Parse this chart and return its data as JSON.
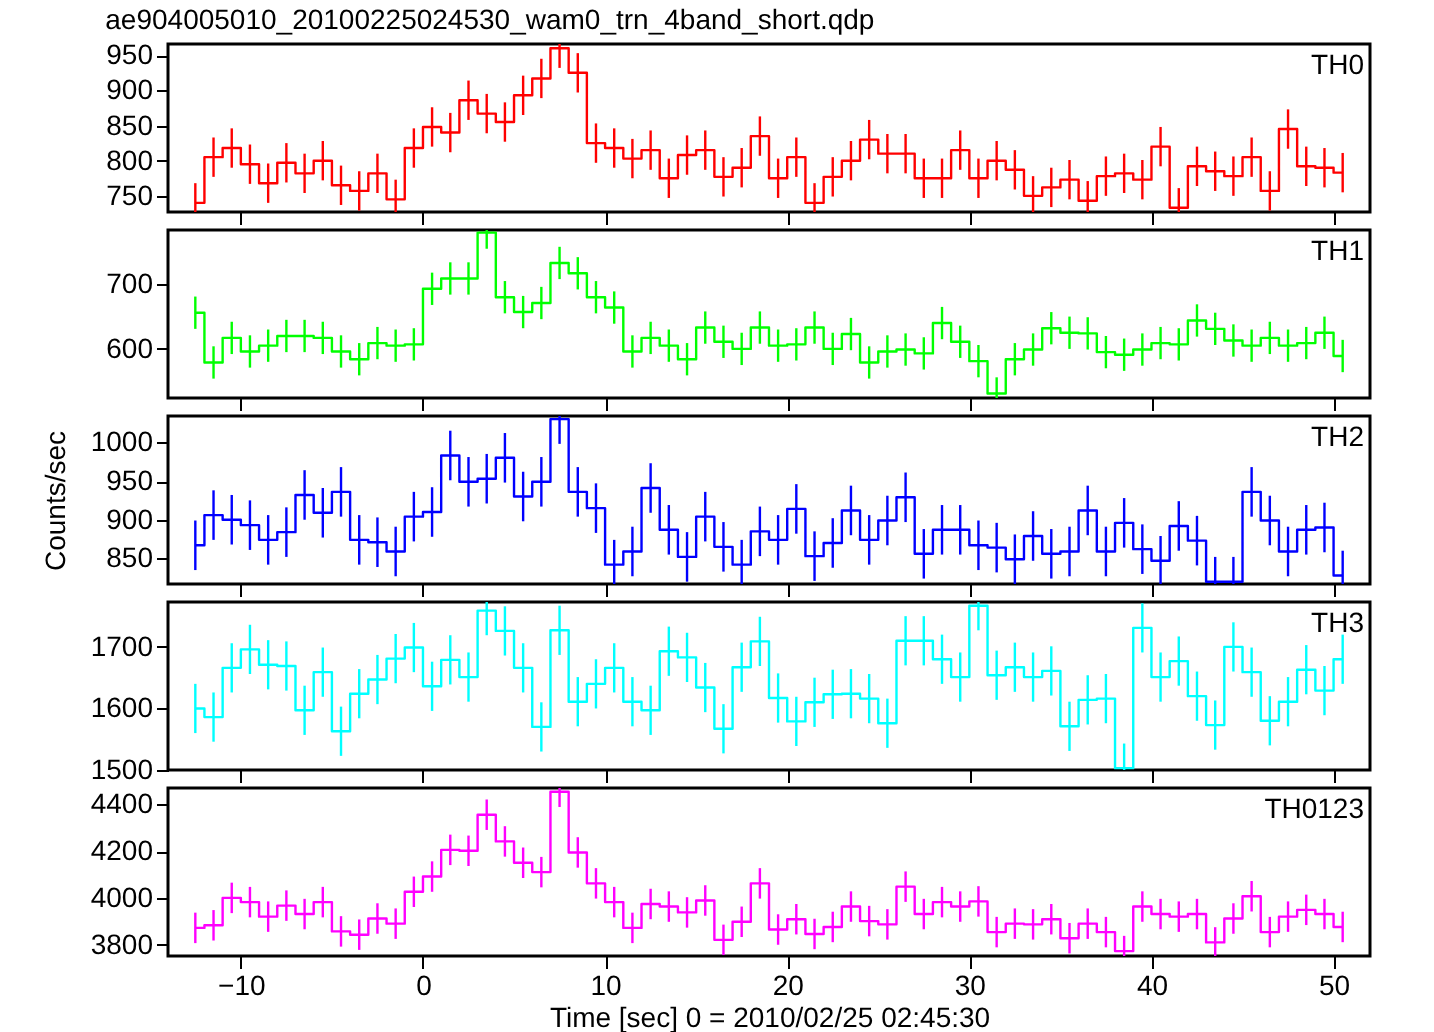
{
  "chart_data": [
    {
      "type": "step",
      "title": "ae904005010_20100225024530_wam0_trn_4band_short.qdp",
      "tick_labels": "y",
      "x": [
        -12.5,
        -11.5,
        -10.5,
        -9.5,
        -8.5,
        -7.5,
        -6.5,
        -5.5,
        -4.5,
        -3.5,
        -2.5,
        -1.5,
        -0.5,
        0.5,
        1.5,
        2.5,
        3.5,
        4.5,
        5.5,
        6.5,
        7.5,
        8.5,
        9.5,
        10.5,
        11.5,
        12.5,
        13.5,
        14.5,
        15.5,
        16.5,
        17.5,
        18.5,
        19.5,
        20.5,
        21.5,
        22.5,
        23.5,
        24.5,
        25.5,
        26.5,
        27.5,
        28.5,
        29.5,
        30.5,
        31.5,
        32.5,
        33.5,
        34.5,
        35.5,
        36.5,
        37.5,
        38.5,
        39.5,
        40.5,
        41.5,
        42.5,
        43.5,
        44.5,
        45.5,
        46.5,
        47.5,
        48.5,
        49.5,
        50.5
      ],
      "xlim": [
        -14,
        52
      ],
      "xticks": [
        -10,
        0,
        10,
        20,
        30,
        40,
        50
      ],
      "ylim": [
        727,
        966
      ],
      "yticks": [
        750,
        800,
        850,
        900,
        950
      ],
      "series": [
        {
          "name": "TH0",
          "color": "#ff0000",
          "values": [
            740,
            805,
            818,
            795,
            768,
            797,
            782,
            800,
            765,
            757,
            782,
            745,
            818,
            848,
            840,
            886,
            867,
            855,
            893,
            917,
            960,
            925,
            825,
            818,
            803,
            815,
            775,
            808,
            815,
            777,
            790,
            835,
            775,
            805,
            740,
            777,
            800,
            830,
            810,
            810,
            775,
            775,
            815,
            775,
            800,
            787,
            750,
            762,
            773,
            743,
            778,
            782,
            773,
            820,
            733,
            792,
            785,
            778,
            805,
            757,
            845,
            792,
            790,
            783
          ],
          "errors": [
            28,
            28,
            28,
            28,
            28,
            28,
            28,
            28,
            28,
            28,
            28,
            28,
            28,
            28,
            28,
            28,
            28,
            28,
            28,
            28,
            28,
            28,
            28,
            28,
            28,
            28,
            28,
            28,
            28,
            28,
            28,
            28,
            28,
            28,
            28,
            28,
            28,
            28,
            28,
            28,
            28,
            28,
            28,
            28,
            28,
            28,
            28,
            28,
            28,
            28,
            28,
            28,
            28,
            28,
            28,
            28,
            28,
            28,
            28,
            28,
            28,
            28,
            28,
            28
          ]
        }
      ]
    },
    {
      "type": "step",
      "tick_labels": "y",
      "x": [
        -12.5,
        -11.5,
        -10.5,
        -9.5,
        -8.5,
        -7.5,
        -6.5,
        -5.5,
        -4.5,
        -3.5,
        -2.5,
        -1.5,
        -0.5,
        0.5,
        1.5,
        2.5,
        3.5,
        4.5,
        5.5,
        6.5,
        7.5,
        8.5,
        9.5,
        10.5,
        11.5,
        12.5,
        13.5,
        14.5,
        15.5,
        16.5,
        17.5,
        18.5,
        19.5,
        20.5,
        21.5,
        22.5,
        23.5,
        24.5,
        25.5,
        26.5,
        27.5,
        28.5,
        29.5,
        30.5,
        31.5,
        32.5,
        33.5,
        34.5,
        35.5,
        36.5,
        37.5,
        38.5,
        39.5,
        40.5,
        41.5,
        42.5,
        43.5,
        44.5,
        45.5,
        46.5,
        47.5,
        48.5,
        49.5,
        50.5
      ],
      "xlim": [
        -14,
        52
      ],
      "xticks": [
        -10,
        0,
        10,
        20,
        30,
        40,
        50
      ],
      "ylim": [
        524,
        784
      ],
      "yticks": [
        600,
        700
      ],
      "series": [
        {
          "name": "TH1",
          "color": "#00ff00",
          "values": [
            656,
            579,
            617,
            596,
            605,
            620,
            620,
            617,
            596,
            584,
            609,
            605,
            607,
            693,
            709,
            709,
            780,
            680,
            657,
            671,
            733,
            717,
            680,
            664,
            596,
            617,
            605,
            584,
            633,
            611,
            600,
            633,
            605,
            607,
            633,
            600,
            623,
            579,
            596,
            599,
            593,
            640,
            611,
            581,
            531,
            584,
            599,
            632,
            625,
            624,
            595,
            591,
            599,
            609,
            607,
            644,
            631,
            613,
            605,
            617,
            605,
            609,
            625,
            589
          ],
          "errors": [
            25,
            25,
            25,
            25,
            25,
            25,
            25,
            25,
            25,
            25,
            25,
            25,
            25,
            25,
            25,
            25,
            25,
            25,
            25,
            25,
            25,
            25,
            25,
            25,
            25,
            25,
            25,
            25,
            25,
            25,
            25,
            25,
            25,
            25,
            25,
            25,
            25,
            25,
            25,
            25,
            25,
            25,
            25,
            25,
            25,
            25,
            25,
            25,
            25,
            25,
            25,
            25,
            25,
            25,
            25,
            25,
            25,
            25,
            25,
            25,
            25,
            25,
            25,
            25
          ]
        }
      ]
    },
    {
      "type": "step",
      "tick_labels": "y",
      "ylabel": "Counts/sec",
      "x": [
        -12.5,
        -11.5,
        -10.5,
        -9.5,
        -8.5,
        -7.5,
        -6.5,
        -5.5,
        -4.5,
        -3.5,
        -2.5,
        -1.5,
        -0.5,
        0.5,
        1.5,
        2.5,
        3.5,
        4.5,
        5.5,
        6.5,
        7.5,
        8.5,
        9.5,
        10.5,
        11.5,
        12.5,
        13.5,
        14.5,
        15.5,
        16.5,
        17.5,
        18.5,
        19.5,
        20.5,
        21.5,
        22.5,
        23.5,
        24.5,
        25.5,
        26.5,
        27.5,
        28.5,
        29.5,
        30.5,
        31.5,
        32.5,
        33.5,
        34.5,
        35.5,
        36.5,
        37.5,
        38.5,
        39.5,
        40.5,
        41.5,
        42.5,
        43.5,
        44.5,
        45.5,
        46.5,
        47.5,
        48.5,
        49.5,
        50.5
      ],
      "xlim": [
        -14,
        52
      ],
      "xticks": [
        -10,
        0,
        10,
        20,
        30,
        40,
        50
      ],
      "ylim": [
        817,
        1034
      ],
      "yticks": [
        850,
        900,
        950,
        1000
      ],
      "series": [
        {
          "name": "TH2",
          "color": "#0000ff",
          "values": [
            867,
            906,
            900,
            893,
            874,
            884,
            932,
            909,
            936,
            874,
            871,
            859,
            904,
            910,
            983,
            949,
            953,
            980,
            930,
            949,
            1030,
            936,
            915,
            842,
            859,
            941,
            887,
            852,
            904,
            865,
            842,
            885,
            874,
            914,
            853,
            870,
            912,
            874,
            899,
            929,
            856,
            887,
            887,
            867,
            864,
            849,
            879,
            856,
            859,
            912,
            859,
            896,
            862,
            847,
            892,
            873,
            820,
            820,
            936,
            899,
            859,
            887,
            890,
            828
          ],
          "errors": [
            32,
            32,
            32,
            32,
            32,
            32,
            32,
            32,
            32,
            32,
            32,
            32,
            32,
            32,
            32,
            32,
            32,
            32,
            32,
            32,
            32,
            32,
            32,
            32,
            32,
            32,
            32,
            32,
            32,
            32,
            32,
            32,
            32,
            32,
            32,
            32,
            32,
            32,
            32,
            32,
            32,
            32,
            32,
            32,
            32,
            32,
            32,
            32,
            32,
            32,
            32,
            32,
            32,
            32,
            32,
            32,
            32,
            32,
            32,
            32,
            32,
            32,
            32,
            32
          ]
        }
      ]
    },
    {
      "type": "step",
      "tick_labels": "y",
      "x": [
        -12.5,
        -11.5,
        -10.5,
        -9.5,
        -8.5,
        -7.5,
        -6.5,
        -5.5,
        -4.5,
        -3.5,
        -2.5,
        -1.5,
        -0.5,
        0.5,
        1.5,
        2.5,
        3.5,
        4.5,
        5.5,
        6.5,
        7.5,
        8.5,
        9.5,
        10.5,
        11.5,
        12.5,
        13.5,
        14.5,
        15.5,
        16.5,
        17.5,
        18.5,
        19.5,
        20.5,
        21.5,
        22.5,
        23.5,
        24.5,
        25.5,
        26.5,
        27.5,
        28.5,
        29.5,
        30.5,
        31.5,
        32.5,
        33.5,
        34.5,
        35.5,
        36.5,
        37.5,
        38.5,
        39.5,
        40.5,
        41.5,
        42.5,
        43.5,
        44.5,
        45.5,
        46.5,
        47.5,
        48.5,
        49.5,
        50.5
      ],
      "xlim": [
        -14,
        52
      ],
      "xticks": [
        -10,
        0,
        10,
        20,
        30,
        40,
        50
      ],
      "ylim": [
        1500,
        1773
      ],
      "yticks": [
        1500,
        1600,
        1700
      ],
      "series": [
        {
          "name": "TH3",
          "color": "#00ffff",
          "values": [
            1600,
            1586,
            1666,
            1696,
            1671,
            1669,
            1597,
            1659,
            1563,
            1624,
            1647,
            1681,
            1699,
            1636,
            1679,
            1651,
            1759,
            1726,
            1666,
            1570,
            1727,
            1611,
            1640,
            1666,
            1611,
            1597,
            1693,
            1683,
            1634,
            1567,
            1667,
            1709,
            1617,
            1579,
            1610,
            1623,
            1624,
            1616,
            1576,
            1710,
            1710,
            1680,
            1651,
            1767,
            1654,
            1667,
            1651,
            1661,
            1571,
            1614,
            1616,
            1503,
            1731,
            1651,
            1677,
            1620,
            1573,
            1700,
            1659,
            1580,
            1611,
            1663,
            1629,
            1680
          ],
          "errors": [
            40,
            40,
            40,
            40,
            40,
            40,
            40,
            40,
            40,
            40,
            40,
            40,
            40,
            40,
            40,
            40,
            40,
            40,
            40,
            40,
            40,
            40,
            40,
            40,
            40,
            40,
            40,
            40,
            40,
            40,
            40,
            40,
            40,
            40,
            40,
            40,
            40,
            40,
            40,
            40,
            40,
            40,
            40,
            40,
            40,
            40,
            40,
            40,
            40,
            40,
            40,
            40,
            40,
            40,
            40,
            40,
            40,
            40,
            40,
            40,
            40,
            40,
            40,
            40
          ]
        }
      ]
    },
    {
      "type": "step",
      "xlabel": "Time [sec] 0 = 2010/02/25 02:45:30",
      "x": [
        -12.5,
        -11.5,
        -10.5,
        -9.5,
        -8.5,
        -7.5,
        -6.5,
        -5.5,
        -4.5,
        -3.5,
        -2.5,
        -1.5,
        -0.5,
        0.5,
        1.5,
        2.5,
        3.5,
        4.5,
        5.5,
        6.5,
        7.5,
        8.5,
        9.5,
        10.5,
        11.5,
        12.5,
        13.5,
        14.5,
        15.5,
        16.5,
        17.5,
        18.5,
        19.5,
        20.5,
        21.5,
        22.5,
        23.5,
        24.5,
        25.5,
        26.5,
        27.5,
        28.5,
        29.5,
        30.5,
        31.5,
        32.5,
        33.5,
        34.5,
        35.5,
        36.5,
        37.5,
        38.5,
        39.5,
        40.5,
        41.5,
        42.5,
        43.5,
        44.5,
        45.5,
        46.5,
        47.5,
        48.5,
        49.5,
        50.5
      ],
      "xlim": [
        -14,
        52
      ],
      "xticks": [
        -10,
        0,
        10,
        20,
        30,
        40,
        50
      ],
      "ylim": [
        3752,
        4469
      ],
      "yticks": [
        3800,
        4000,
        4200,
        4400
      ],
      "series": [
        {
          "name": "TH0123",
          "color": "#ff00ff",
          "values": [
            3872,
            3883,
            4000,
            3982,
            3920,
            3967,
            3931,
            3982,
            3857,
            3843,
            3912,
            3890,
            4026,
            4091,
            4205,
            4201,
            4355,
            4241,
            4150,
            4110,
            4453,
            4194,
            4062,
            3982,
            3872,
            3974,
            3963,
            3938,
            3989,
            3821,
            3898,
            4062,
            3865,
            3909,
            3846,
            3876,
            3963,
            3901,
            3887,
            4048,
            3931,
            3982,
            3963,
            3985,
            3854,
            3890,
            3887,
            3909,
            3828,
            3890,
            3854,
            3773,
            3963,
            3931,
            3920,
            3931,
            3810,
            3912,
            4007,
            3854,
            3920,
            3949,
            3931,
            3876
          ],
          "errors": [
            65,
            65,
            65,
            65,
            65,
            65,
            65,
            65,
            65,
            65,
            65,
            65,
            65,
            65,
            65,
            65,
            65,
            65,
            65,
            65,
            65,
            65,
            65,
            65,
            65,
            65,
            65,
            65,
            65,
            65,
            65,
            65,
            65,
            65,
            65,
            65,
            65,
            65,
            65,
            65,
            65,
            65,
            65,
            65,
            65,
            65,
            65,
            65,
            65,
            65,
            65,
            65,
            65,
            65,
            65,
            65,
            65,
            65,
            65,
            65,
            65,
            65,
            65,
            65
          ]
        }
      ]
    }
  ]
}
